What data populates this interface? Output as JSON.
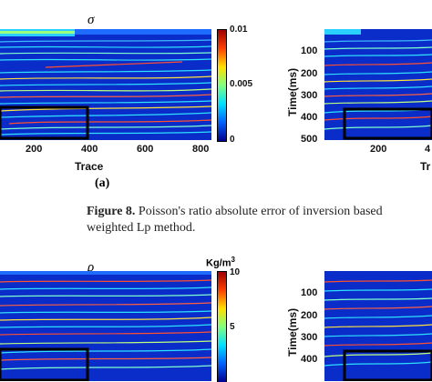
{
  "figure8": {
    "panel_a": {
      "symbol": "σ",
      "x_label": "Trace",
      "x_ticks": [
        "200",
        "400",
        "600",
        "800"
      ],
      "colorbar": {
        "max": "0.01",
        "mid": "0.005",
        "min": "0",
        "colors": [
          "#00008f",
          "#0060ff",
          "#00e0ff",
          "#80ff80",
          "#ffe000",
          "#ff4000",
          "#9f0000"
        ]
      },
      "label": "(a)"
    },
    "panel_b": {
      "y_label": "Time(ms)",
      "y_ticks": [
        "100",
        "200",
        "300",
        "400",
        "500"
      ],
      "x_ticks_partial": [
        "200",
        "4"
      ],
      "x_label_partial": "Tr"
    },
    "caption_prefix": "Figure 8.",
    "caption_text": "Poisson's ratio absolute error of inversion based",
    "caption_line2": "weighted Lp method."
  },
  "figure9": {
    "panel_a": {
      "symbol": "ρ",
      "unit": "Kg/m",
      "unit_sup": "3",
      "colorbar": {
        "max": "10",
        "mid": "5"
      }
    },
    "panel_b": {
      "y_label": "Time(ms)",
      "y_ticks": [
        "100",
        "200",
        "300",
        "400"
      ]
    }
  }
}
